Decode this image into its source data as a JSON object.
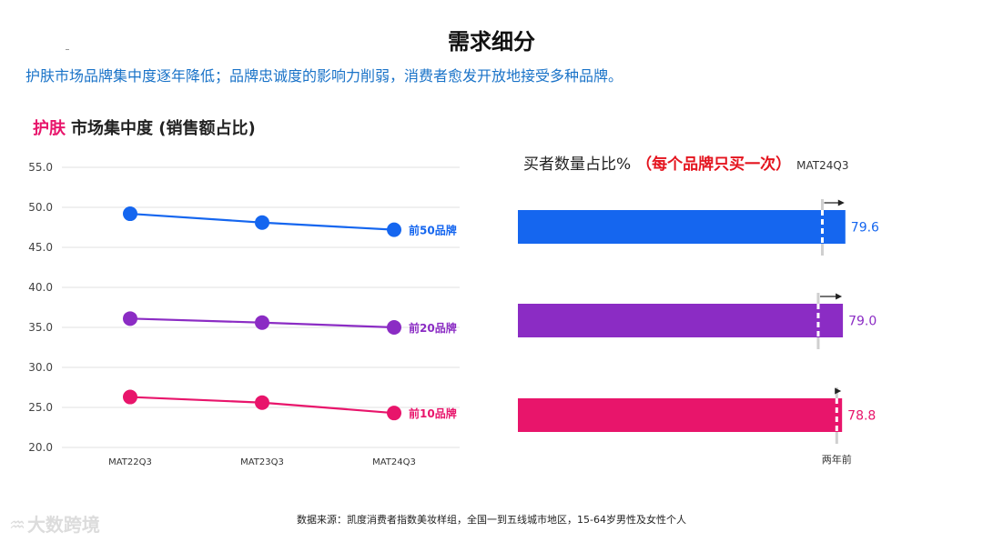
{
  "page": {
    "title": "需求细分",
    "subtitle": "护肤市场品牌集中度逐年降低；品牌忠诚度的影响力削弱，消费者愈发开放地接受多种品牌。",
    "source": "数据来源：凯度消费者指数美妆样组，全国一到五线城市地区，15-64岁男性及女性个人",
    "watermark": "大数跨境"
  },
  "colors": {
    "top50": "#1566ef",
    "top20": "#8b2cc4",
    "top10": "#e8156b",
    "title_pink": "#e8156b",
    "subtitle_blue": "#1a73c8",
    "note_red": "#e4141e"
  },
  "chart_data": [
    {
      "type": "line",
      "title_highlight": "护肤",
      "title": "市场集中度 (销售额占比)",
      "categories": [
        "MAT22Q3",
        "MAT23Q3",
        "MAT24Q3"
      ],
      "ylim": [
        20.0,
        55.0
      ],
      "yticks": [
        "55.0",
        "50.0",
        "45.0",
        "40.0",
        "35.0",
        "30.0",
        "25.0",
        "20.0"
      ],
      "grid": true,
      "series": [
        {
          "name": "前50品牌",
          "values": [
            49.2,
            48.1,
            47.2
          ],
          "color": "#1566ef"
        },
        {
          "name": "前20品牌",
          "values": [
            36.1,
            35.6,
            35.0
          ],
          "color": "#8b2cc4"
        },
        {
          "name": "前10品牌",
          "values": [
            26.3,
            25.6,
            24.3
          ],
          "color": "#e8156b"
        }
      ]
    },
    {
      "type": "bar",
      "orientation": "horizontal",
      "title": "买者数量占比%",
      "title_note": "（每个品牌只买一次）",
      "period": "MAT24Q3",
      "xlim": [
        0,
        100
      ],
      "reference_label": "两年前",
      "series": [
        {
          "name": "前50品牌",
          "value": 79.6,
          "label": "79.6",
          "reference_value": 74.0,
          "color": "#1566ef"
        },
        {
          "name": "前20品牌",
          "value": 79.0,
          "label": "79.0",
          "reference_value": 73.0,
          "color": "#8b2cc4"
        },
        {
          "name": "前10品牌",
          "value": 78.8,
          "label": "78.8",
          "reference_value": 77.5,
          "color": "#e8156b"
        }
      ]
    }
  ]
}
